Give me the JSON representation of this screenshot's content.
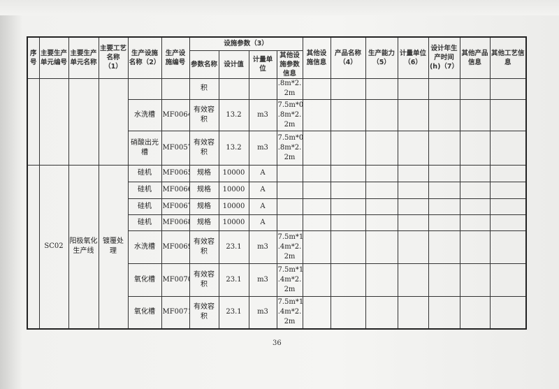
{
  "headers": {
    "seq": "序号",
    "unit_code": "主要生产单元编号",
    "unit_name": "主要生产单元名称",
    "process_name": "主要工艺名称（1）",
    "facility_name": "生产设施名称（2）",
    "facility_code": "生产设施编号",
    "params_group": "设施参数（3）",
    "param_name": "参数名称",
    "design_value": "设计值",
    "unit": "计量单位",
    "other_param": "其他设施参数信息",
    "other_facility": "其他设施信息",
    "product_name": "产品名称（4）",
    "capacity": "生产能力（5）",
    "cap_unit": "计量单位（6）",
    "design_hours": "设计年生产时间(h)（7）",
    "other_product": "其他产品信息",
    "other_process": "其他工艺信息"
  },
  "group1": {
    "rows": [
      {
        "facility_name": "",
        "facility_code": "",
        "param_name": "积",
        "design_value": "",
        "unit": "",
        "other": ".8m*2.\n2m"
      },
      {
        "facility_name": "水洗槽",
        "facility_code": "MF0064",
        "param_name": "有效容积",
        "design_value": "13.2",
        "unit": "m3",
        "other": "7.5m*0\n.8m*2.\n2m"
      },
      {
        "facility_name": "硝酸出光槽",
        "facility_code": "MF0057",
        "param_name": "有效容积",
        "design_value": "13.2",
        "unit": "m3",
        "other": "7.5m*0\n.8m*2.\n2m"
      }
    ]
  },
  "group2": {
    "seq": "",
    "unit_code": "SC02",
    "unit_name": "阳极氧化生产线",
    "process_name": "镀覆处理",
    "rows": [
      {
        "facility_name": "硅机",
        "facility_code": "MF0065",
        "param_name": "规格",
        "design_value": "10000",
        "unit": "A",
        "other": ""
      },
      {
        "facility_name": "硅机",
        "facility_code": "MF0066",
        "param_name": "规格",
        "design_value": "10000",
        "unit": "A",
        "other": ""
      },
      {
        "facility_name": "硅机",
        "facility_code": "MF0067",
        "param_name": "规格",
        "design_value": "10000",
        "unit": "A",
        "other": ""
      },
      {
        "facility_name": "硅机",
        "facility_code": "MF0068",
        "param_name": "规格",
        "design_value": "10000",
        "unit": "A",
        "other": ""
      },
      {
        "facility_name": "水洗槽",
        "facility_code": "MF0069",
        "param_name": "有效容积",
        "design_value": "23.1",
        "unit": "m3",
        "other": "7.5m*1\n.4m*2.\n2m"
      },
      {
        "facility_name": "氧化槽",
        "facility_code": "MF0070",
        "param_name": "有效容积",
        "design_value": "23.1",
        "unit": "m3",
        "other": "7.5m*1\n.4m*2.\n2m"
      },
      {
        "facility_name": "氧化槽",
        "facility_code": "MF0071",
        "param_name": "有效容积",
        "design_value": "23.1",
        "unit": "m3",
        "other": "7.5m*1\n.4m*2.\n2m"
      }
    ]
  },
  "page_number": "36"
}
